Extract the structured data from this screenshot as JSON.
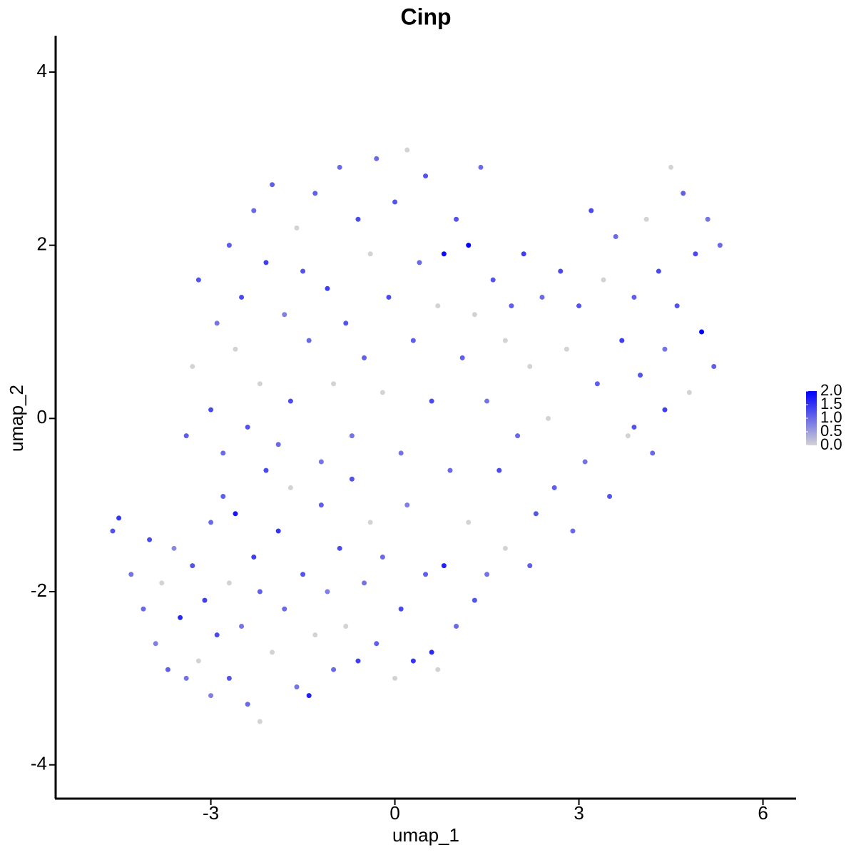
{
  "chart_data": {
    "type": "scatter",
    "title": "Cinp",
    "x_label": "umap_1",
    "y_label": "umap_2",
    "xlim": [
      -5.53,
      6.54
    ],
    "ylim": [
      -4.39,
      4.42
    ],
    "xticks": [
      -3,
      0,
      3,
      6
    ],
    "yticks": [
      -4,
      -2,
      0,
      2,
      4
    ],
    "x": [
      -4.6,
      -4.5,
      -4.3,
      -4.1,
      -4.0,
      -3.9,
      -3.8,
      -3.7,
      -3.6,
      -3.5,
      -3.4,
      -3.3,
      -3.2,
      -3.1,
      -3.0,
      -3.0,
      -2.9,
      -2.8,
      -2.7,
      -2.7,
      -2.6,
      -2.5,
      -2.4,
      -2.3,
      -2.2,
      -2.2,
      -2.1,
      -2.0,
      -1.9,
      -1.8,
      -1.7,
      -1.6,
      -1.5,
      -1.4,
      -1.3,
      -1.2,
      -1.1,
      -1.0,
      -0.9,
      -0.8,
      -0.7,
      -0.6,
      -0.5,
      -0.4,
      -0.3,
      -0.2,
      0.0,
      0.1,
      0.2,
      0.3,
      0.5,
      0.6,
      0.7,
      0.8,
      1.0,
      1.2,
      1.3,
      1.5,
      1.8,
      2.2,
      -3.4,
      -3.3,
      -3.2,
      -3.0,
      -2.9,
      -2.8,
      -2.7,
      -2.6,
      -2.5,
      -2.4,
      -2.3,
      -2.2,
      -2.1,
      -2.0,
      -1.9,
      -1.8,
      -1.7,
      -1.6,
      -1.5,
      -1.4,
      -1.3,
      -1.2,
      -1.1,
      -1.0,
      -0.9,
      -0.8,
      -0.7,
      -0.6,
      -0.5,
      -0.4,
      -0.3,
      -0.2,
      -0.1,
      0.0,
      0.1,
      0.2,
      0.3,
      0.4,
      0.5,
      0.6,
      0.7,
      0.8,
      0.9,
      1.0,
      1.1,
      1.2,
      1.3,
      1.4,
      1.5,
      1.6,
      1.7,
      1.8,
      1.9,
      2.0,
      2.1,
      2.2,
      2.3,
      2.4,
      2.5,
      2.6,
      2.7,
      2.8,
      2.9,
      3.0,
      3.1,
      3.2,
      3.3,
      3.4,
      3.5,
      3.6,
      3.7,
      3.8,
      3.9,
      4.0,
      4.1,
      4.2,
      4.3,
      4.4,
      4.5,
      4.6,
      4.7,
      4.8,
      4.9,
      5.0,
      5.1,
      5.2,
      5.3,
      4.4,
      3.9
    ],
    "y": [
      -1.3,
      -1.15,
      -1.8,
      -2.2,
      -1.4,
      -2.6,
      -1.9,
      -2.9,
      -1.5,
      -2.3,
      -3.0,
      -1.7,
      -2.8,
      -2.1,
      -1.2,
      -3.2,
      -2.5,
      -0.9,
      -1.9,
      -3.0,
      -1.1,
      -2.4,
      -3.3,
      -1.6,
      -3.5,
      -2.0,
      -0.6,
      -2.7,
      -1.3,
      -2.2,
      -0.8,
      -3.1,
      -1.8,
      -3.2,
      -2.5,
      -1.0,
      -2.0,
      -2.9,
      -1.5,
      -2.4,
      -0.7,
      -2.8,
      -1.9,
      -1.2,
      -2.6,
      -1.6,
      -3.0,
      -2.2,
      -1.0,
      -2.8,
      -1.8,
      -2.7,
      -2.9,
      -1.7,
      -2.4,
      -1.2,
      -2.1,
      -1.8,
      -1.5,
      -1.7,
      -0.2,
      0.6,
      1.6,
      0.1,
      1.1,
      -0.4,
      2.0,
      0.8,
      1.4,
      -0.1,
      2.4,
      0.4,
      1.8,
      2.7,
      -0.3,
      1.2,
      0.2,
      2.2,
      1.7,
      0.9,
      2.6,
      -0.5,
      1.5,
      0.4,
      2.9,
      1.1,
      -0.2,
      2.3,
      0.7,
      1.9,
      3.0,
      0.3,
      1.4,
      2.5,
      -0.4,
      3.1,
      0.9,
      1.8,
      2.8,
      0.2,
      1.3,
      1.9,
      -0.6,
      2.3,
      0.7,
      2.0,
      1.2,
      2.9,
      0.2,
      1.6,
      -0.6,
      0.9,
      1.3,
      -0.2,
      1.9,
      0.6,
      -1.1,
      1.4,
      0.0,
      -0.8,
      1.7,
      0.8,
      -1.3,
      1.3,
      -0.5,
      2.4,
      0.4,
      1.6,
      -0.9,
      2.1,
      0.9,
      -0.2,
      1.4,
      0.5,
      2.3,
      -0.4,
      1.7,
      0.8,
      2.9,
      1.3,
      2.6,
      0.3,
      1.9,
      1.0,
      2.3,
      0.6,
      2.0,
      0.1,
      -0.1
    ],
    "values": [
      1.2,
      1.5,
      0.9,
      1.0,
      1.3,
      0.8,
      0,
      1.1,
      0.7,
      1.6,
      0.9,
      1.2,
      0,
      1.4,
      1.0,
      0.8,
      1.3,
      1.1,
      0,
      1.2,
      1.8,
      0.9,
      1.0,
      1.4,
      0,
      1.1,
      1.3,
      0,
      1.5,
      1.0,
      0,
      0.9,
      1.2,
      1.7,
      0,
      1.1,
      0.8,
      1.0,
      1.3,
      0,
      1.2,
      1.4,
      0.9,
      0,
      1.1,
      1.0,
      0,
      1.3,
      0.8,
      1.5,
      1.1,
      1.6,
      0,
      1.7,
      1.0,
      0,
      1.2,
      0.9,
      0,
      1.1,
      1.1,
      0,
      1.2,
      1.3,
      0.9,
      1.0,
      1.1,
      0,
      1.3,
      1.2,
      1.0,
      0,
      1.4,
      1.1,
      1.0,
      0.8,
      1.3,
      0,
      1.2,
      1.0,
      1.1,
      0.9,
      1.4,
      0,
      1.0,
      1.2,
      0.9,
      1.3,
      1.1,
      0,
      1.0,
      0,
      1.3,
      1.2,
      0.9,
      0,
      1.1,
      1.0,
      1.2,
      1.3,
      0,
      1.9,
      1.0,
      1.2,
      1.1,
      2.0,
      0,
      1.0,
      0.9,
      1.2,
      1.3,
      0,
      1.1,
      1.0,
      1.4,
      0,
      1.2,
      1.0,
      0,
      1.1,
      1.3,
      0,
      1.0,
      1.2,
      0.9,
      1.3,
      1.1,
      0,
      1.2,
      1.0,
      1.4,
      0,
      1.1,
      1.2,
      0,
      1.0,
      1.3,
      0.9,
      0,
      1.2,
      1.1,
      0,
      1.3,
      2.0,
      0.9,
      1.1,
      1.0,
      1.4,
      1.2
    ],
    "colorbar": {
      "lim": [
        0,
        2
      ],
      "low_color": "#d3d3d3",
      "high_color": "#0000ff",
      "ticks": [
        {
          "value": 0,
          "label": "0.0"
        },
        0.5,
        {
          "value": 1,
          "label": "1.0"
        },
        1.5,
        {
          "value": 2,
          "label": "2.0"
        }
      ]
    }
  }
}
